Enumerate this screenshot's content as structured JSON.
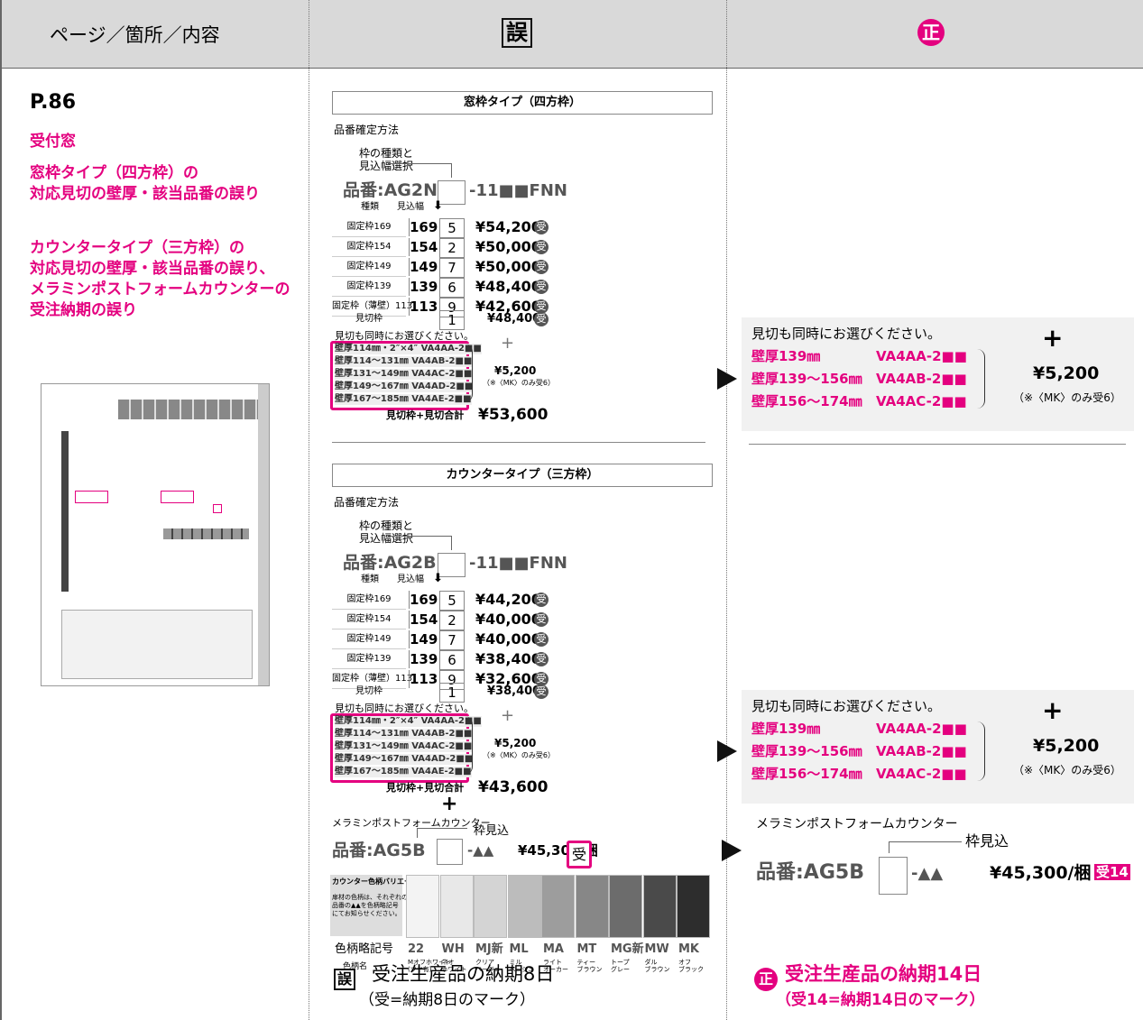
{
  "header": {
    "col1": "ページ／箇所／内容",
    "col2": "誤",
    "col3": "正"
  },
  "left": {
    "page": "P.86",
    "items": [
      "受付窓",
      "窓枠タイプ（四方枠）の\n対応見切の壁厚・該当品番の誤り",
      "カウンタータイプ（三方枠）の\n対応見切の壁厚・該当品番の誤り、\nメラミンポストフォームカウンターの\n受注納期の誤り"
    ]
  },
  "wrong": {
    "mark": "受",
    "sections": [
      {
        "title": "窓枠タイプ（四方枠）",
        "method": "品番確定方法",
        "selector": "枠の種類と\n見込幅選択",
        "part_prefix": "品番:AG2N",
        "part_suffix": "-11■■FNN",
        "col_type": "種類",
        "col_width": "見込幅",
        "rows": [
          [
            "固定枠169",
            "169",
            "5",
            "¥54,200"
          ],
          [
            "固定枠154",
            "154",
            "2",
            "¥50,000"
          ],
          [
            "固定枠149",
            "149",
            "7",
            "¥50,000"
          ],
          [
            "固定枠139",
            "139",
            "6",
            "¥48,400"
          ],
          [
            "固定枠（薄壁）113",
            "113",
            "9",
            "¥42,600"
          ]
        ],
        "trim": [
          "見切枠",
          "1",
          "¥48,400"
        ],
        "trim_prompt": "見切も同時にお選びください。",
        "options": [
          "壁厚114㎜・2″×4″ VA4AA-2■■",
          "壁厚114〜131㎜ VA4AB-2■■",
          "壁厚131〜149㎜ VA4AC-2■■",
          "壁厚149〜167㎜ VA4AD-2■■",
          "壁厚167〜185㎜ VA4AE-2■■"
        ],
        "plus": "+",
        "option_price": "¥5,200",
        "option_note": "（※〈MK〉のみ受6）",
        "total_label": "見切枠+見切合計",
        "total": "¥53,600"
      },
      {
        "title": "カウンタータイプ（三方枠）",
        "method": "品番確定方法",
        "selector": "枠の種類と\n見込幅選択",
        "part_prefix": "品番:AG2B",
        "part_suffix": "-11■■FNN",
        "col_type": "種類",
        "col_width": "見込幅",
        "rows": [
          [
            "固定枠169",
            "169",
            "5",
            "¥44,200"
          ],
          [
            "固定枠154",
            "154",
            "2",
            "¥40,000"
          ],
          [
            "固定枠149",
            "149",
            "7",
            "¥40,000"
          ],
          [
            "固定枠139",
            "139",
            "6",
            "¥38,400"
          ],
          [
            "固定枠（薄壁）113",
            "113",
            "9",
            "¥32,600"
          ]
        ],
        "trim": [
          "見切枠",
          "1",
          "¥38,400"
        ],
        "trim_prompt": "見切も同時にお選びください。",
        "options": [
          "壁厚114㎜・2″×4″ VA4AA-2■■",
          "壁厚114〜131㎜ VA4AB-2■■",
          "壁厚131〜149㎜ VA4AC-2■■",
          "壁厚149〜167㎜ VA4AD-2■■",
          "壁厚167〜185㎜ VA4AE-2■■"
        ],
        "plus": "+",
        "option_price": "¥5,200",
        "option_note": "（※〈MK〉のみ受6）",
        "total_label": "見切枠+見切合計",
        "total": "¥43,600"
      }
    ],
    "counter": {
      "plus": "+",
      "label": "メラミンポストフォームカウンター",
      "depth": "枠見込",
      "part_prefix": "品番:AG5B",
      "part_suffix": "-▲▲",
      "price": "¥45,300/梱",
      "mark": "受",
      "swatch_title": "カウンター色柄バリエーション",
      "swatch_note": "扉材の色柄は、それぞれの\n品番の▲▲を色柄略記号\nにてお知らせください。",
      "code_label": "色柄略記号",
      "name_label": "色柄名",
      "swatches": [
        {
          "code": "22",
          "name": "Mオフホワイト\n(ツヤ有)",
          "color": "#f3f3f3"
        },
        {
          "code": "WH",
          "name": "ネオ\nホワイト",
          "color": "#e8e8e8"
        },
        {
          "code": "MJ新",
          "name": "クリア\nベージュ",
          "color": "#d4d4d4"
        },
        {
          "code": "ML",
          "name": "ミル\nベージュ",
          "color": "#bcbcbc"
        },
        {
          "code": "MA",
          "name": "ライト\nオーカー",
          "color": "#9d9d9d"
        },
        {
          "code": "MT",
          "name": "ティー\nブラウン",
          "color": "#878787"
        },
        {
          "code": "MG新",
          "name": "トープ\nグレー",
          "color": "#6c6c6c"
        },
        {
          "code": "MW",
          "name": "ダル\nブラウン",
          "color": "#4a4a4a"
        },
        {
          "code": "MK",
          "name": "オフ\nブラック",
          "color": "#2d2d2d"
        }
      ]
    },
    "footer": {
      "badge": "誤",
      "text": "受注生産品の納期8日",
      "note": "（受=納期8日のマーク）"
    }
  },
  "right": {
    "panels": [
      {
        "prompt": "見切も同時にお選びください。",
        "options": [
          {
            "label": "壁厚139㎜",
            "code": "VA4AA-2■■"
          },
          {
            "label": "壁厚139〜156㎜",
            "code": "VA4AB-2■■"
          },
          {
            "label": "壁厚156〜174㎜",
            "code": "VA4AC-2■■"
          }
        ],
        "plus": "+",
        "price": "¥5,200",
        "note": "（※〈MK〉のみ受6）"
      },
      {
        "prompt": "見切も同時にお選びください。",
        "options": [
          {
            "label": "壁厚139㎜",
            "code": "VA4AA-2■■"
          },
          {
            "label": "壁厚139〜156㎜",
            "code": "VA4AB-2■■"
          },
          {
            "label": "壁厚156〜174㎜",
            "code": "VA4AC-2■■"
          }
        ],
        "plus": "+",
        "price": "¥5,200",
        "note": "（※〈MK〉のみ受6）"
      }
    ],
    "counter": {
      "label": "メラミンポストフォームカウンター",
      "depth": "枠見込",
      "part_prefix": "品番:AG5B",
      "part_suffix": "-▲▲",
      "price": "¥45,300/梱",
      "mark": "受14"
    },
    "footer": {
      "badge": "正",
      "text": "受注生産品の納期14日",
      "note": "（受14=納期14日のマーク）"
    }
  }
}
